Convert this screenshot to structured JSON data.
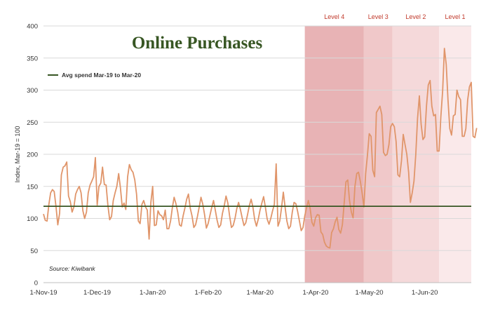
{
  "chart_data": {
    "type": "line",
    "title": "Online Purchases",
    "ylabel": "Index, Mar-19 = 100",
    "xlabel": "",
    "source": "Source: Kiwibank",
    "ylim": [
      0,
      400
    ],
    "yticks": [
      0,
      50,
      100,
      150,
      200,
      250,
      300,
      350,
      400
    ],
    "grid": "horizontal",
    "x_start": "2019-11-01",
    "x_end": "2020-06-27",
    "xticks": [
      {
        "date": "2019-11-01",
        "label": "1-Nov-19"
      },
      {
        "date": "2019-12-01",
        "label": "1-Dec-19"
      },
      {
        "date": "2020-01-01",
        "label": "1-Jan-20"
      },
      {
        "date": "2020-02-01",
        "label": "1-Feb-20"
      },
      {
        "date": "2020-03-01",
        "label": "1-Mar-20"
      },
      {
        "date": "2020-04-01",
        "label": "1-Apr-20"
      },
      {
        "date": "2020-05-01",
        "label": "1-May-20"
      },
      {
        "date": "2020-06-01",
        "label": "1-Jun-20"
      }
    ],
    "reference_line": {
      "label": "Avg spend Mar-19 to Mar-20",
      "value": 119,
      "color": "#375623"
    },
    "levels": [
      {
        "label": "Level 4",
        "start": "2020-03-26",
        "end": "2020-04-28",
        "color": "#e8b3b5"
      },
      {
        "label": "Level 3",
        "start": "2020-04-28",
        "end": "2020-05-14",
        "color": "#f0c8c9"
      },
      {
        "label": "Level 2",
        "start": "2020-05-14",
        "end": "2020-06-09",
        "color": "#f5d9da"
      },
      {
        "label": "Level 1",
        "start": "2020-06-09",
        "end": "2020-06-27",
        "color": "#fae9ea"
      }
    ],
    "series": [
      {
        "color": "#e0956a",
        "start": "2019-11-01",
        "values": [
          107,
          97,
          96,
          122,
          140,
          145,
          142,
          118,
          90,
          108,
          168,
          180,
          182,
          188,
          135,
          126,
          110,
          118,
          138,
          145,
          150,
          140,
          112,
          100,
          110,
          140,
          152,
          158,
          165,
          195,
          121,
          150,
          155,
          180,
          153,
          152,
          120,
          98,
          103,
          128,
          140,
          150,
          170,
          148,
          118,
          124,
          114,
          165,
          184,
          176,
          172,
          160,
          138,
          96,
          92,
          122,
          128,
          118,
          113,
          68,
          125,
          150,
          89,
          90,
          112,
          106,
          104,
          98,
          113,
          84,
          84,
          96,
          117,
          133,
          123,
          110,
          90,
          88,
          104,
          116,
          130,
          138,
          116,
          104,
          86,
          90,
          103,
          118,
          133,
          122,
          106,
          85,
          92,
          105,
          117,
          128,
          113,
          97,
          86,
          90,
          108,
          120,
          135,
          124,
          104,
          86,
          89,
          100,
          115,
          125,
          114,
          101,
          89,
          93,
          106,
          120,
          130,
          118,
          98,
          88,
          99,
          113,
          124,
          134,
          117,
          99,
          91,
          100,
          112,
          122,
          185,
          88,
          96,
          117,
          141,
          117,
          96,
          84,
          88,
          110,
          125,
          123,
          111,
          96,
          81,
          86,
          104,
          117,
          128,
          115,
          94,
          88,
          101,
          106,
          105,
          79,
          75,
          63,
          57,
          55,
          54,
          78,
          84,
          95,
          102,
          83,
          77,
          90,
          124,
          157,
          160,
          128,
          110,
          101,
          150,
          170,
          172,
          158,
          140,
          118,
          170,
          199,
          232,
          228,
          175,
          165,
          265,
          270,
          275,
          262,
          203,
          198,
          200,
          215,
          243,
          248,
          243,
          220,
          168,
          165,
          190,
          231,
          215,
          200,
          172,
          125,
          140,
          158,
          200,
          256,
          291,
          247,
          223,
          227,
          276,
          308,
          315,
          275,
          260,
          262,
          205,
          205,
          258,
          299,
          365,
          340,
          285,
          240,
          230,
          260,
          262,
          300,
          290,
          285,
          228,
          228,
          240,
          285,
          305,
          312,
          228,
          226,
          241
        ]
      }
    ]
  }
}
